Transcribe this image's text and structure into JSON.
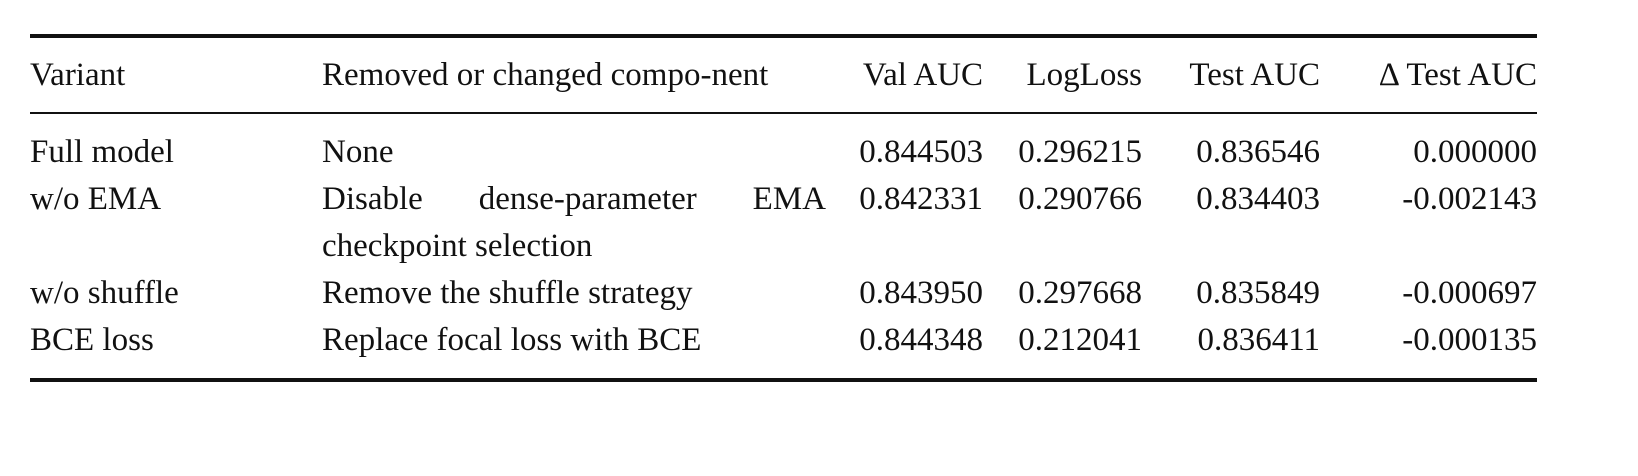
{
  "table": {
    "header": [
      "Variant",
      "Removed or changed compo-nent",
      "Val AUC",
      "LogLoss",
      "Test AUC",
      "Δ Test AUC"
    ],
    "rows": [
      [
        "Full model",
        "None",
        "0.844503",
        "0.296215",
        "0.836546",
        "0.000000"
      ],
      [
        "w/o EMA",
        "Disable dense-parameter EMA checkpoint selection",
        "0.842331",
        "0.290766",
        "0.834403",
        "-0.002143"
      ],
      [
        "w/o shuffle",
        "Remove the shuffle strategy",
        "0.843950",
        "0.297668",
        "0.835849",
        "-0.000697"
      ],
      [
        "BCE loss",
        "Replace focal loss with BCE",
        "0.844348",
        "0.212041",
        "0.836411",
        "-0.000135"
      ]
    ]
  }
}
